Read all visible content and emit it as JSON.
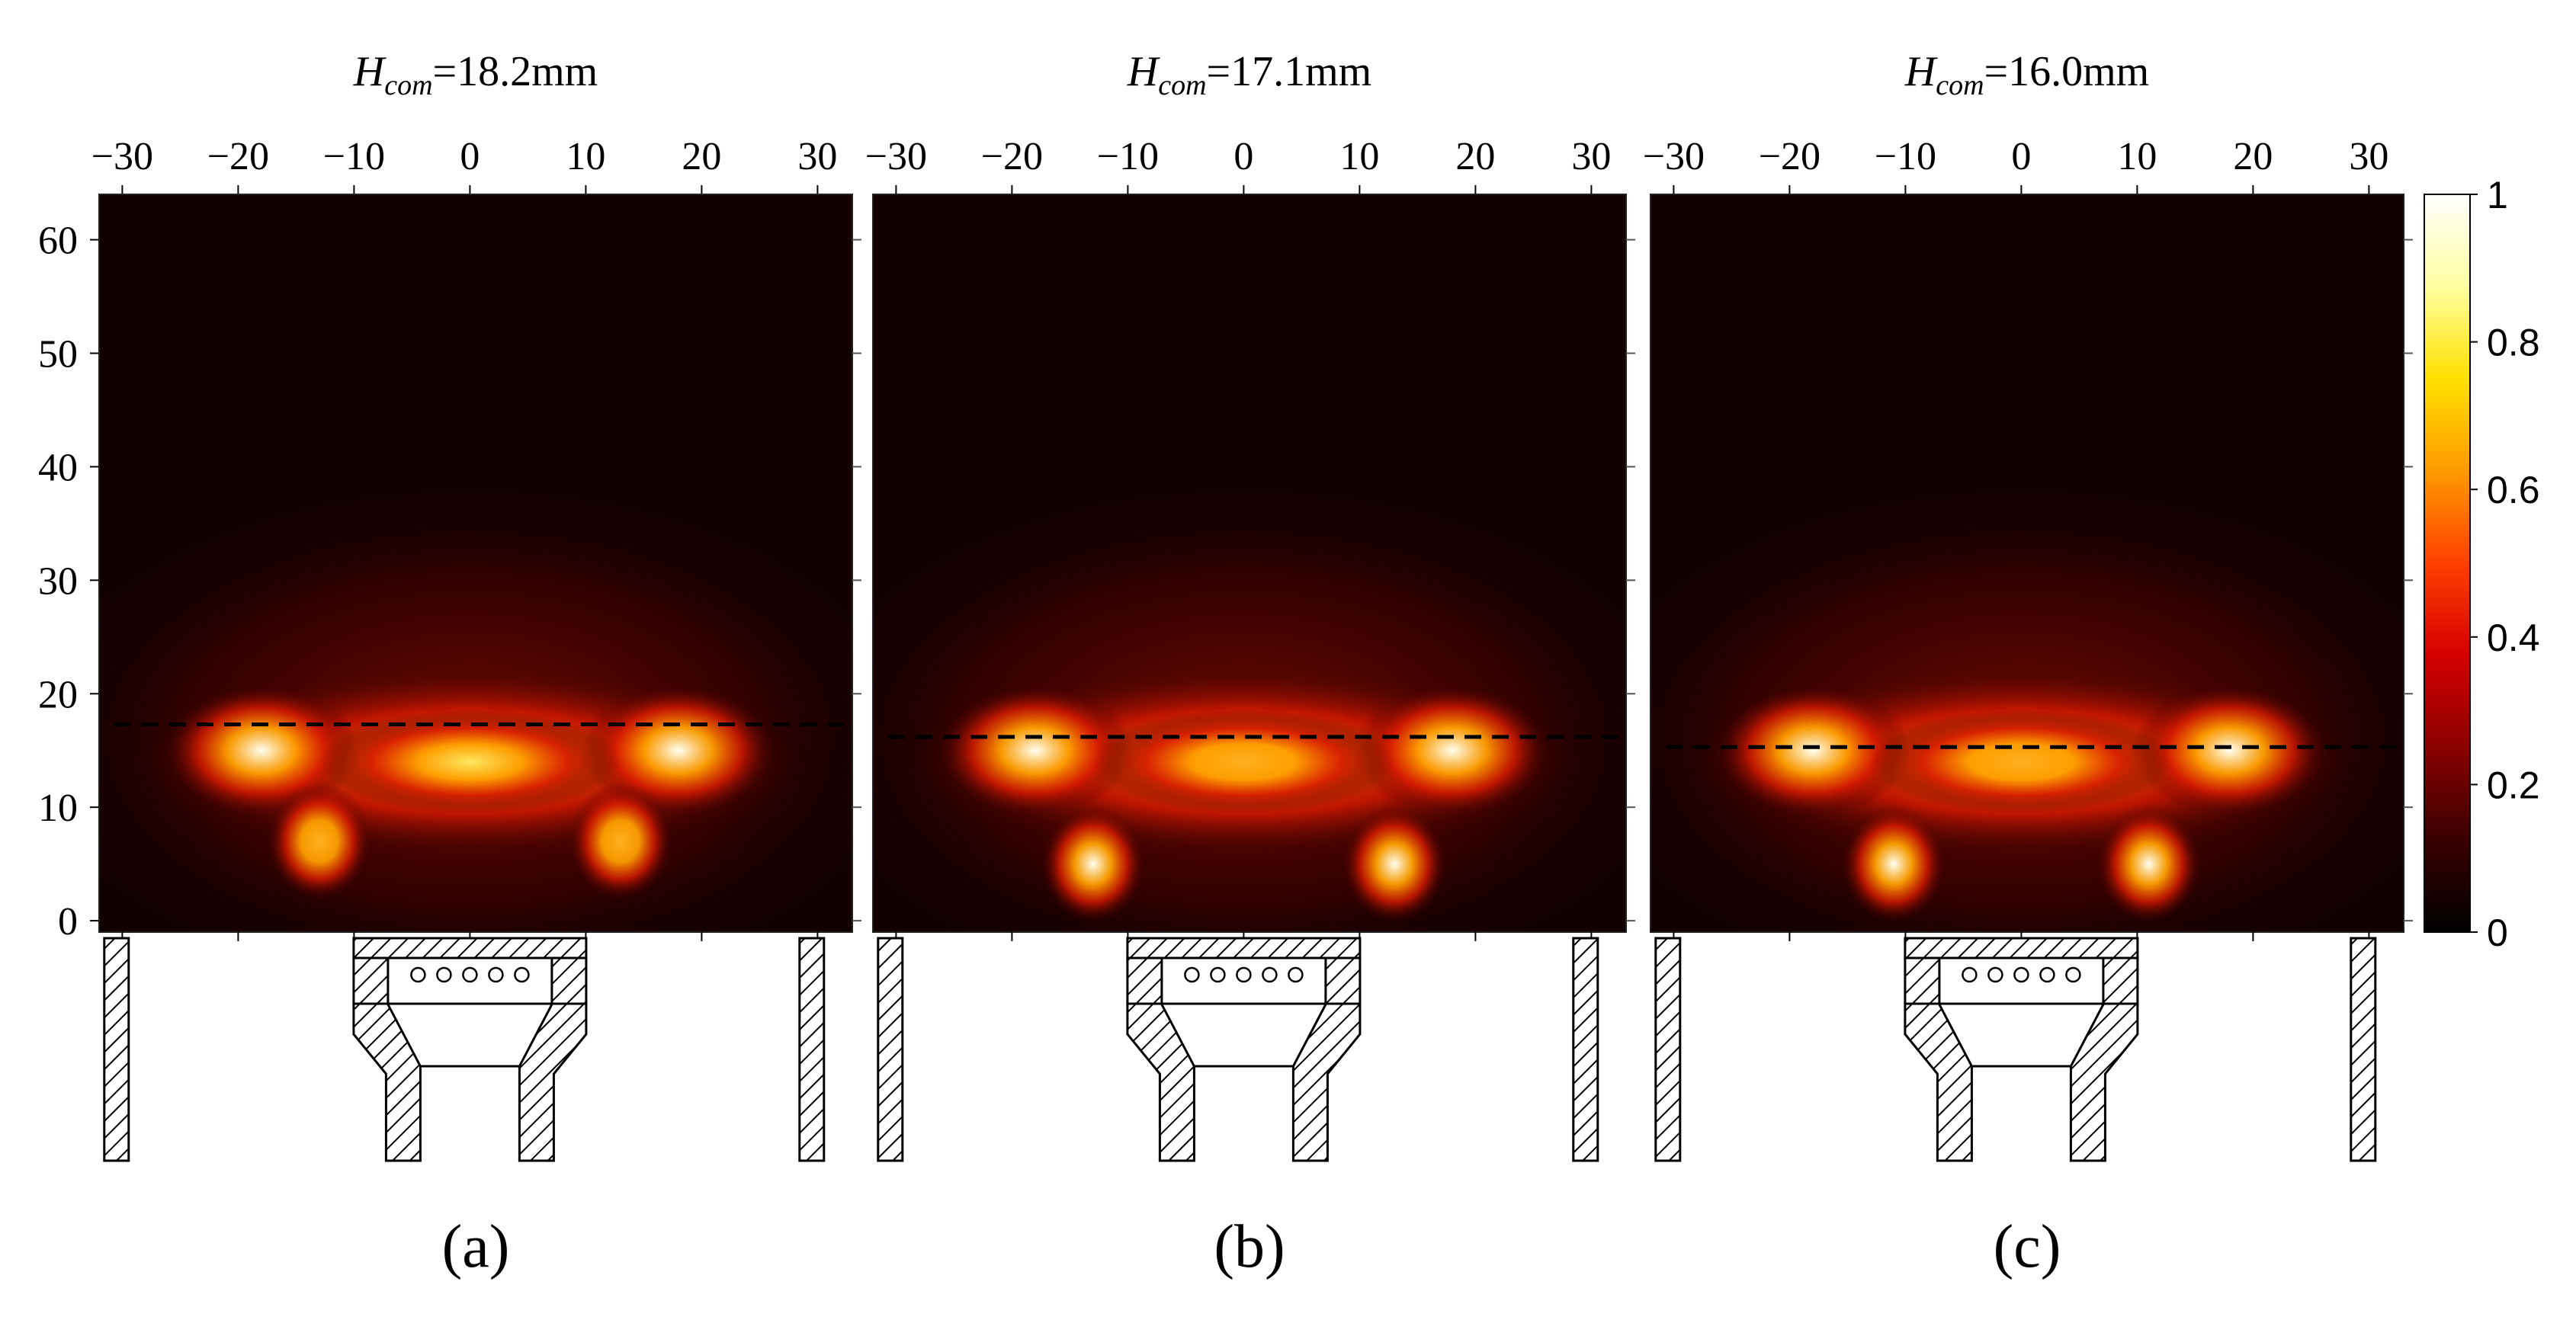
{
  "chart_data": [
    {
      "type": "heatmap",
      "panel_label": "(a)",
      "title": {
        "symbol": "H",
        "subscript": "com",
        "value": "=18.2mm"
      },
      "h_com_mm": 18.2,
      "xlim": [
        -32,
        33
      ],
      "ylim": [
        -1,
        64
      ],
      "x_ticks": [
        -30,
        -20,
        -10,
        0,
        10,
        20,
        30
      ],
      "x_tick_labels": [
        "−30",
        "−20",
        "−10",
        "0",
        "10",
        "20",
        "30"
      ],
      "y_ticks": [
        0,
        10,
        20,
        30,
        40,
        50,
        60
      ],
      "y_tick_labels": [
        "0",
        "10",
        "20",
        "30",
        "40",
        "50",
        "60"
      ],
      "dashed_line_y": 17.3,
      "hotspots": [
        {
          "x": -18,
          "y": 15,
          "intensity": 1.0
        },
        {
          "x": 18,
          "y": 15,
          "intensity": 1.0
        },
        {
          "x": 0,
          "y": 14,
          "intensity": 0.8
        },
        {
          "x": -13,
          "y": 7,
          "intensity": 0.7
        },
        {
          "x": 13,
          "y": 7,
          "intensity": 0.7
        }
      ]
    },
    {
      "type": "heatmap",
      "panel_label": "(b)",
      "title": {
        "symbol": "H",
        "subscript": "com",
        "value": "=17.1mm"
      },
      "h_com_mm": 17.1,
      "xlim": [
        -32,
        33
      ],
      "ylim": [
        -1,
        64
      ],
      "x_ticks": [
        -30,
        -20,
        -10,
        0,
        10,
        20,
        30
      ],
      "x_tick_labels": [
        "−30",
        "−20",
        "−10",
        "0",
        "10",
        "20",
        "30"
      ],
      "y_ticks": [
        0,
        10,
        20,
        30,
        40,
        50,
        60
      ],
      "dashed_line_y": 16.2,
      "hotspots": [
        {
          "x": -18,
          "y": 15,
          "intensity": 1.0
        },
        {
          "x": 18,
          "y": 15,
          "intensity": 1.0
        },
        {
          "x": 0,
          "y": 14,
          "intensity": 0.75
        },
        {
          "x": -13,
          "y": 5,
          "intensity": 0.95
        },
        {
          "x": 13,
          "y": 5,
          "intensity": 0.95
        }
      ]
    },
    {
      "type": "heatmap",
      "panel_label": "(c)",
      "title": {
        "symbol": "H",
        "subscript": "com",
        "value": "=16.0mm"
      },
      "h_com_mm": 16.0,
      "xlim": [
        -32,
        33
      ],
      "ylim": [
        -1,
        64
      ],
      "x_ticks": [
        -30,
        -20,
        -10,
        0,
        10,
        20,
        30
      ],
      "x_tick_labels": [
        "−30",
        "−20",
        "−10",
        "0",
        "10",
        "20",
        "30"
      ],
      "y_ticks": [
        0,
        10,
        20,
        30,
        40,
        50,
        60
      ],
      "dashed_line_y": 15.3,
      "hotspots": [
        {
          "x": -18,
          "y": 15,
          "intensity": 1.0
        },
        {
          "x": 18,
          "y": 15,
          "intensity": 1.0
        },
        {
          "x": 0,
          "y": 14,
          "intensity": 0.75
        },
        {
          "x": -11,
          "y": 5,
          "intensity": 0.95
        },
        {
          "x": 11,
          "y": 5,
          "intensity": 0.95
        }
      ]
    }
  ],
  "colorbar": {
    "min": 0,
    "max": 1,
    "tick_values": [
      0,
      0.2,
      0.4,
      0.6,
      0.8,
      1
    ],
    "tick_labels": [
      "0",
      "0.2",
      "0.4",
      "0.6",
      "0.8",
      "1"
    ],
    "colormap": "hot",
    "colors": [
      "#000000",
      "#3a0000",
      "#8a0000",
      "#d40000",
      "#ff4000",
      "#ff9a00",
      "#ffe000",
      "#ffffa0",
      "#ffffff"
    ]
  },
  "burner_sketch": {
    "hatch_color": "#000000",
    "outline_color": "#000000"
  }
}
